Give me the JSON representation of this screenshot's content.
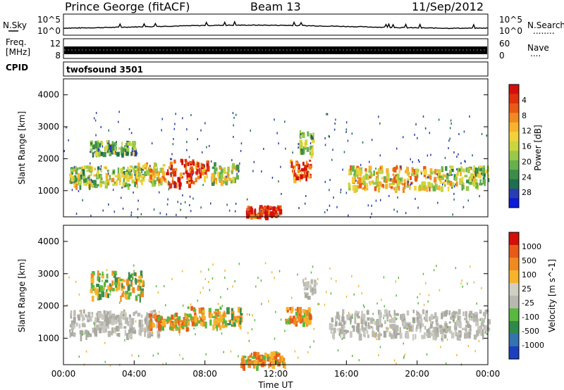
{
  "header": {
    "station": "Prince George (fitACF)",
    "beam": "Beam 13",
    "date": "11/Sep/2012"
  },
  "strips": {
    "nsky_label": "N.Sky",
    "nsearch_label": "N.Search",
    "nsearch_dots": "........",
    "nsky_top_tick": "10^5",
    "nsky_bottom_tick": "10^0",
    "freq_label_1": "Freq.",
    "freq_label_2": "[MHz]",
    "freq_top_tick": "12",
    "freq_bottom_tick": "8",
    "nave_label": "Nave",
    "nave_dots": "....",
    "nave_top_tick": "60",
    "nave_bottom_tick": "0",
    "cpid_label": "CPID",
    "cpid_value": "twofsound 3501"
  },
  "chart_data": [
    {
      "type": "heatmap",
      "name": "power",
      "xlabel": "",
      "ylabel": "Slant Range [km]",
      "xlim": [
        "00:00",
        "24:00"
      ],
      "ylim": [
        180,
        4500
      ],
      "yticks": [
        "1000",
        "2000",
        "3000",
        "4000"
      ],
      "colorbar": {
        "label": "Power [dB]",
        "ticks": [
          "4",
          "8",
          "12",
          "16",
          "20",
          "24",
          "28"
        ],
        "colors": [
          "#0a1ad8",
          "#2a3cb4",
          "#1f6e4f",
          "#3d8c4a",
          "#66b04d",
          "#98c94a",
          "#c9d63e",
          "#f2d23a",
          "#f7b32b",
          "#f08a21",
          "#e85a16",
          "#e0300e",
          "#d40f0a"
        ]
      },
      "regions": [
        {
          "t": [
            0.3,
            4.5
          ],
          "r": [
            1200,
            1800
          ],
          "level": 0.45
        },
        {
          "t": [
            1.5,
            4.0
          ],
          "r": [
            2200,
            2600
          ],
          "level": 0.35
        },
        {
          "t": [
            4.0,
            5.7
          ],
          "r": [
            1300,
            1900
          ],
          "level": 0.6
        },
        {
          "t": [
            5.7,
            7.4
          ],
          "r": [
            1200,
            2000
          ],
          "level": 0.9
        },
        {
          "t": [
            7.4,
            8.1
          ],
          "r": [
            1400,
            2000
          ],
          "level": 0.75
        },
        {
          "t": [
            8.3,
            9.8
          ],
          "r": [
            1300,
            1900
          ],
          "level": 0.5
        },
        {
          "t": [
            10.3,
            12.2
          ],
          "r": [
            250,
            550
          ],
          "level": 0.95
        },
        {
          "t": [
            12.7,
            13.9
          ],
          "r": [
            1400,
            2000
          ],
          "level": 0.85
        },
        {
          "t": [
            13.3,
            14.1
          ],
          "r": [
            2200,
            2900
          ],
          "level": 0.4
        },
        {
          "t": [
            16.0,
            21.0
          ],
          "r": [
            1100,
            1800
          ],
          "level": 0.6
        },
        {
          "t": [
            21.0,
            24.0
          ],
          "r": [
            1100,
            1800
          ],
          "level": 0.45
        }
      ]
    },
    {
      "type": "heatmap",
      "name": "velocity",
      "xlabel": "Time UT",
      "ylabel": "Slant Range [km]",
      "xlim": [
        "00:00",
        "24:00"
      ],
      "ylim": [
        180,
        4500
      ],
      "xticks": [
        "00:00",
        "04:00",
        "08:00",
        "12:00",
        "16:00",
        "20:00",
        "00:00"
      ],
      "yticks": [
        "1000",
        "2000",
        "3000",
        "4000"
      ],
      "colorbar": {
        "label": "Velocity [m s^-1]",
        "ticks": [
          "1000",
          "500",
          "100",
          "25",
          "-25",
          "-100",
          "-500",
          "-1000"
        ],
        "colors": [
          "#1a3fbf",
          "#3572b0",
          "#2f8a4a",
          "#59b83f",
          "#b8b8b0",
          "#cfcfc4",
          "#f7b32b",
          "#f08a21",
          "#e85a16",
          "#d40f0a"
        ]
      },
      "regions": [
        {
          "t": [
            0.3,
            5.5
          ],
          "r": [
            1100,
            1900
          ],
          "kind": "ground"
        },
        {
          "t": [
            1.5,
            4.5
          ],
          "r": [
            2300,
            3100
          ],
          "kind": "pos"
        },
        {
          "t": [
            4.8,
            7.0
          ],
          "r": [
            1300,
            1800
          ],
          "kind": "neg"
        },
        {
          "t": [
            7.0,
            8.0
          ],
          "r": [
            1500,
            2000
          ],
          "kind": "neg"
        },
        {
          "t": [
            8.2,
            10.0
          ],
          "r": [
            1400,
            2000
          ],
          "kind": "pos"
        },
        {
          "t": [
            10.0,
            12.5
          ],
          "r": [
            200,
            600
          ],
          "kind": "neg"
        },
        {
          "t": [
            12.5,
            13.9
          ],
          "r": [
            1500,
            2000
          ],
          "kind": "neg"
        },
        {
          "t": [
            13.5,
            14.2
          ],
          "r": [
            2300,
            2900
          ],
          "kind": "ground"
        },
        {
          "t": [
            15.0,
            24.0
          ],
          "r": [
            1100,
            1900
          ],
          "kind": "ground"
        }
      ]
    }
  ]
}
